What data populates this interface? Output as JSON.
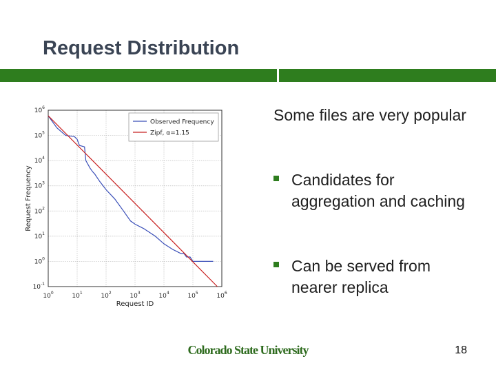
{
  "slide": {
    "title": "Request Distribution",
    "lead": "Some files are very popular",
    "bullets": [
      "Candidates for aggregation and caching",
      "Can be served from nearer replica"
    ],
    "footer": "Colorado State University",
    "page_number": "18",
    "accent_color": "#2e7d1e"
  },
  "chart_data": {
    "type": "line",
    "xlabel": "Request ID",
    "ylabel": "Request Frequency",
    "xscale": "log",
    "yscale": "log",
    "xlim": [
      1,
      1000000
    ],
    "ylim": [
      0.1,
      1000000
    ],
    "xtick_exponents": [
      0,
      1,
      2,
      3,
      4,
      5,
      6
    ],
    "ytick_exponents": [
      -1,
      0,
      1,
      2,
      3,
      4,
      5,
      6
    ],
    "grid": true,
    "legend_position": "top-right",
    "series": [
      {
        "name": "Observed Frequency",
        "color": "#3a4fb8",
        "x": [
          1,
          2,
          4,
          8,
          10,
          12,
          18,
          20,
          28,
          35,
          40,
          60,
          100,
          200,
          400,
          700,
          1000,
          2000,
          5000,
          10000,
          20000,
          40000,
          50000,
          60000,
          80000,
          100000,
          150000,
          500000
        ],
        "y": [
          600000,
          200000,
          100000,
          90000,
          70000,
          40000,
          35000,
          10000,
          5000,
          3500,
          3000,
          1500,
          700,
          300,
          100,
          40,
          30,
          20,
          10,
          5,
          3,
          2,
          2,
          1.5,
          1.5,
          1,
          1,
          1
        ]
      },
      {
        "name": "Zipf, α=1.15",
        "color": "#c82020",
        "x": [
          1,
          700000
        ],
        "y": [
          600000,
          0.1
        ]
      }
    ]
  }
}
